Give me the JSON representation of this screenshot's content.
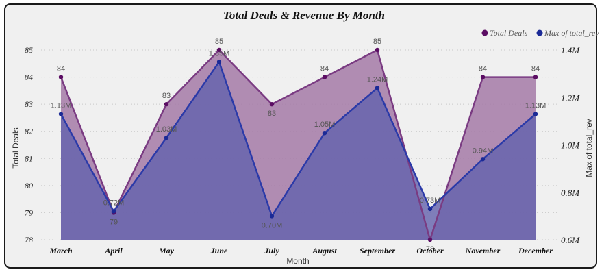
{
  "chart_data": {
    "type": "area",
    "title": "Total Deals & Revenue By Month",
    "xlabel": "Month",
    "ylabel_left": "Total Deals",
    "ylabel_right": "Max of total_rev",
    "categories": [
      "March",
      "April",
      "May",
      "June",
      "July",
      "August",
      "September",
      "October",
      "November",
      "December"
    ],
    "series": [
      {
        "name": "Total Deals",
        "axis": "left",
        "color": "#5b0d63",
        "fill": "#a57aa7",
        "values": [
          84,
          79,
          83,
          85,
          83,
          84,
          85,
          78,
          84,
          84
        ],
        "labels": [
          "84",
          "79",
          "83",
          "85",
          "83",
          "84",
          "85",
          "78",
          "84",
          "84"
        ]
      },
      {
        "name": "Max of total_rev",
        "axis": "right",
        "color": "#1b2a96",
        "fill": "#6361ad",
        "values": [
          1.13,
          0.72,
          1.03,
          1.35,
          0.7,
          1.05,
          1.24,
          0.73,
          0.94,
          1.13
        ],
        "labels": [
          "1.13M",
          "0.72M",
          "1.03M",
          "1.35M",
          "0.70M",
          "1.05M",
          "1.24M",
          "0.73M",
          "0.94M",
          "1.13M"
        ]
      }
    ],
    "ylim_left": [
      78,
      85
    ],
    "yticks_left": [
      "78",
      "79",
      "80",
      "81",
      "82",
      "83",
      "84",
      "85"
    ],
    "ylim_right": [
      0.6,
      1.4
    ],
    "yticks_right": [
      "0.6M",
      "0.8M",
      "1.0M",
      "1.2M",
      "1.4M"
    ],
    "legend": "top-right",
    "grid": true
  }
}
